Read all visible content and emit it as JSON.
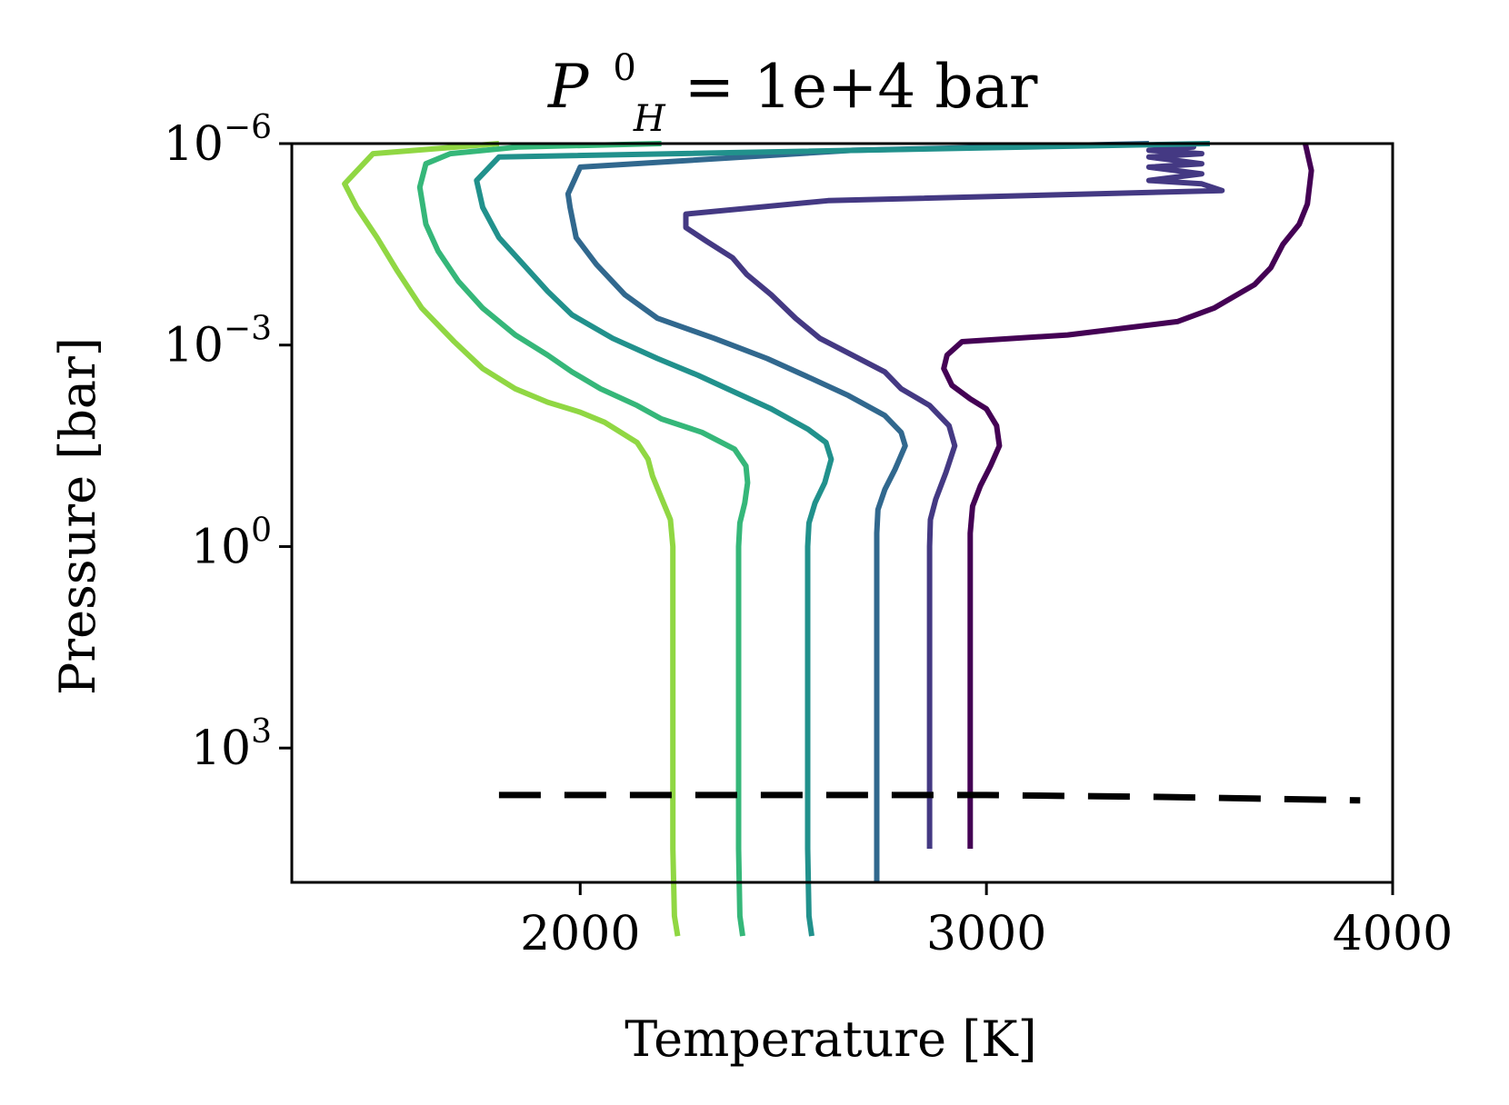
{
  "chart_data": {
    "type": "line",
    "title": {
      "symbol": "P",
      "superscript": "0",
      "subscript": "H",
      "text": " = 1e+4 bar"
    },
    "xlabel": "Temperature [K]",
    "ylabel": "Pressure [bar]",
    "xlim": [
      1290,
      4000
    ],
    "ylim_log10": [
      -6,
      5
    ],
    "y_scale": "log",
    "y_inverted": true,
    "xticks": [
      {
        "value": 2000,
        "label": "2000"
      },
      {
        "value": 3000,
        "label": "3000"
      },
      {
        "value": 4000,
        "label": "4000"
      }
    ],
    "yticks": [
      {
        "exp": -6,
        "base": "10",
        "sup": "−6"
      },
      {
        "exp": -3,
        "base": "10",
        "sup": "−3"
      },
      {
        "exp": 0,
        "base": "10",
        "sup": "0"
      },
      {
        "exp": 3,
        "base": "10",
        "sup": "3"
      }
    ],
    "grid": false,
    "series": [
      {
        "color": "#440154",
        "points": [
          [
            2960,
            4.5
          ],
          [
            2960,
            -0.2
          ],
          [
            2966,
            -0.6
          ],
          [
            2985,
            -0.9
          ],
          [
            3010,
            -1.2
          ],
          [
            3032,
            -1.5
          ],
          [
            3025,
            -1.8
          ],
          [
            3000,
            -2.05
          ],
          [
            2960,
            -2.2
          ],
          [
            2915,
            -2.4
          ],
          [
            2895,
            -2.65
          ],
          [
            2903,
            -2.85
          ],
          [
            2940,
            -3.05
          ],
          [
            3200,
            -3.15
          ],
          [
            3470,
            -3.35
          ],
          [
            3560,
            -3.55
          ],
          [
            3660,
            -3.9
          ],
          [
            3700,
            -4.15
          ],
          [
            3730,
            -4.5
          ],
          [
            3770,
            -4.8
          ],
          [
            3790,
            -5.1
          ],
          [
            3800,
            -5.6
          ],
          [
            3785,
            -6
          ]
        ]
      },
      {
        "color": "#443983",
        "points": [
          [
            2860,
            4.5
          ],
          [
            2860,
            0
          ],
          [
            2862,
            -0.4
          ],
          [
            2875,
            -0.7
          ],
          [
            2900,
            -1.1
          ],
          [
            2922,
            -1.5
          ],
          [
            2908,
            -1.8
          ],
          [
            2860,
            -2.1
          ],
          [
            2790,
            -2.35
          ],
          [
            2750,
            -2.6
          ],
          [
            2670,
            -2.85
          ],
          [
            2590,
            -3.1
          ],
          [
            2530,
            -3.4
          ],
          [
            2470,
            -3.75
          ],
          [
            2410,
            -4.05
          ],
          [
            2375,
            -4.3
          ],
          [
            2310,
            -4.55
          ],
          [
            2260,
            -4.75
          ],
          [
            2260,
            -4.95
          ],
          [
            2610,
            -5.15
          ],
          [
            3580,
            -5.3
          ],
          [
            3530,
            -5.4
          ],
          [
            3400,
            -5.45
          ],
          [
            3530,
            -5.55
          ],
          [
            3400,
            -5.65
          ],
          [
            3530,
            -5.7
          ],
          [
            3400,
            -5.8
          ],
          [
            3530,
            -5.85
          ],
          [
            3400,
            -5.9
          ],
          [
            3510,
            -5.95
          ],
          [
            3500,
            -6
          ]
        ]
      },
      {
        "color": "#31688e",
        "points": [
          [
            2730,
            5
          ],
          [
            2730,
            -0.2
          ],
          [
            2733,
            -0.55
          ],
          [
            2750,
            -0.85
          ],
          [
            2775,
            -1.15
          ],
          [
            2800,
            -1.5
          ],
          [
            2790,
            -1.7
          ],
          [
            2750,
            -1.95
          ],
          [
            2660,
            -2.25
          ],
          [
            2570,
            -2.5
          ],
          [
            2460,
            -2.8
          ],
          [
            2330,
            -3.1
          ],
          [
            2190,
            -3.4
          ],
          [
            2110,
            -3.75
          ],
          [
            2040,
            -4.2
          ],
          [
            1990,
            -4.6
          ],
          [
            1975,
            -5.05
          ],
          [
            1970,
            -5.25
          ],
          [
            2000,
            -5.65
          ],
          [
            2670,
            -5.9
          ],
          [
            3400,
            -6
          ]
        ]
      },
      {
        "color": "#21918c",
        "points": [
          [
            2570,
            5.8
          ],
          [
            2563,
            5.5
          ],
          [
            2560,
            4.5
          ],
          [
            2560,
            0
          ],
          [
            2563,
            -0.35
          ],
          [
            2578,
            -0.65
          ],
          [
            2602,
            -0.95
          ],
          [
            2618,
            -1.3
          ],
          [
            2605,
            -1.55
          ],
          [
            2560,
            -1.75
          ],
          [
            2470,
            -2.05
          ],
          [
            2380,
            -2.3
          ],
          [
            2290,
            -2.55
          ],
          [
            2190,
            -2.8
          ],
          [
            2080,
            -3.1
          ],
          [
            1980,
            -3.45
          ],
          [
            1920,
            -3.8
          ],
          [
            1860,
            -4.2
          ],
          [
            1800,
            -4.6
          ],
          [
            1760,
            -5.05
          ],
          [
            1745,
            -5.45
          ],
          [
            1800,
            -5.8
          ],
          [
            3550,
            -6
          ]
        ]
      },
      {
        "color": "#35b779",
        "points": [
          [
            2400,
            5.8
          ],
          [
            2393,
            5.5
          ],
          [
            2390,
            4.5
          ],
          [
            2390,
            0
          ],
          [
            2393,
            -0.35
          ],
          [
            2405,
            -0.65
          ],
          [
            2412,
            -0.95
          ],
          [
            2408,
            -1.2
          ],
          [
            2380,
            -1.45
          ],
          [
            2300,
            -1.7
          ],
          [
            2200,
            -1.9
          ],
          [
            2140,
            -2.1
          ],
          [
            2050,
            -2.35
          ],
          [
            1980,
            -2.6
          ],
          [
            1920,
            -2.85
          ],
          [
            1840,
            -3.15
          ],
          [
            1760,
            -3.55
          ],
          [
            1700,
            -3.95
          ],
          [
            1650,
            -4.4
          ],
          [
            1620,
            -4.8
          ],
          [
            1605,
            -5.35
          ],
          [
            1620,
            -5.7
          ],
          [
            1680,
            -5.85
          ],
          [
            1850,
            -5.95
          ],
          [
            2200,
            -6
          ]
        ]
      },
      {
        "color": "#90d743",
        "points": [
          [
            2240,
            5.8
          ],
          [
            2232,
            5.5
          ],
          [
            2228,
            4.5
          ],
          [
            2228,
            0
          ],
          [
            2222,
            -0.4
          ],
          [
            2198,
            -0.75
          ],
          [
            2178,
            -1.05
          ],
          [
            2167,
            -1.3
          ],
          [
            2140,
            -1.55
          ],
          [
            2060,
            -1.85
          ],
          [
            2000,
            -2
          ],
          [
            1920,
            -2.15
          ],
          [
            1840,
            -2.35
          ],
          [
            1760,
            -2.65
          ],
          [
            1690,
            -3.05
          ],
          [
            1610,
            -3.55
          ],
          [
            1550,
            -4.1
          ],
          [
            1500,
            -4.6
          ],
          [
            1450,
            -5.05
          ],
          [
            1420,
            -5.4
          ],
          [
            1490,
            -5.85
          ],
          [
            1800,
            -6
          ]
        ]
      }
    ],
    "reference_line": {
      "style": "dashed",
      "color": "#000000",
      "points": [
        [
          1800,
          3.7
        ],
        [
          2300,
          3.7
        ],
        [
          3000,
          3.7
        ],
        [
          3450,
          3.73
        ],
        [
          3920,
          3.78
        ]
      ]
    }
  }
}
